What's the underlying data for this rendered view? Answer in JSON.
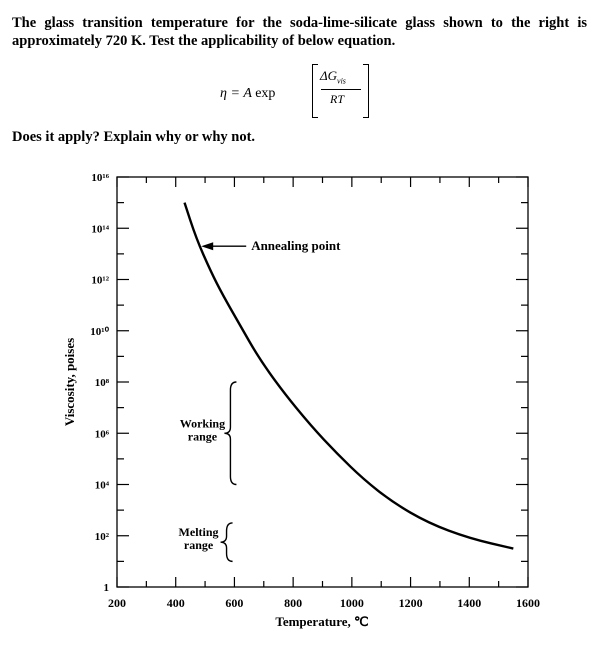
{
  "question": {
    "line1": "The glass transition temperature for the soda-lime-silicate glass shown to the right is approximately 720 K. Test the applicability of below equation.",
    "prompt": "Does it apply? Explain why or why not."
  },
  "equation": {
    "lhs": "η = A",
    "fn": "exp",
    "numerator": "ΔG",
    "numerator_sub": "vis",
    "denominator": "RT"
  },
  "chart_data": {
    "type": "line",
    "title": "",
    "xlabel": "Temperature, ℃",
    "ylabel": "Viscosity, poises",
    "xlim": [
      200,
      1600
    ],
    "ylim_log10": [
      0,
      16
    ],
    "x_ticks": [
      "200",
      "400",
      "600",
      "800",
      "1000",
      "1200",
      "1400",
      "1600"
    ],
    "y_ticks": [
      "1",
      "10²",
      "10⁴",
      "10⁶",
      "10⁸",
      "10¹⁰",
      "10¹²",
      "10¹⁴",
      "10¹⁶"
    ],
    "series": [
      {
        "x": [
          430,
          470,
          520,
          560,
          620,
          680,
          760,
          860,
          950,
          1040,
          1140,
          1260,
          1400,
          1550
        ],
        "log10_y": [
          15,
          13.6,
          12.3,
          11.4,
          10.2,
          9.0,
          7.7,
          6.3,
          5.2,
          4.2,
          3.3,
          2.5,
          1.9,
          1.5
        ]
      }
    ],
    "annotations": [
      {
        "text": "Annealing point",
        "x": 480,
        "log10_y": 13.3,
        "type": "arrow"
      },
      {
        "text": "Working range",
        "log10_y_range": [
          4,
          8
        ],
        "type": "brace"
      },
      {
        "text": "Melting range",
        "log10_y_range": [
          1,
          2.5
        ],
        "type": "brace"
      }
    ],
    "grid": false
  }
}
